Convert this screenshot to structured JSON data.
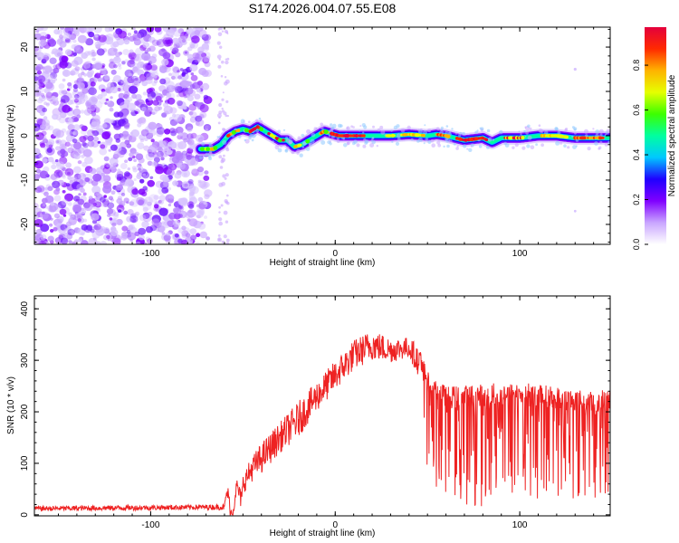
{
  "figure": {
    "title": "S174.2026.004.07.55.E08",
    "colors": {
      "line": "#ee2222",
      "frame": "#000000"
    }
  },
  "chart_data": [
    {
      "type": "heatmap",
      "name": "spectrogram",
      "xlabel": "Height of straight line (km)",
      "ylabel": "Frequency (Hz)",
      "xlim": [
        -163,
        149
      ],
      "ylim": [
        -24.5,
        24.5
      ],
      "xticks": [
        -100,
        0,
        100
      ],
      "xticklabels": [
        "-100",
        "0",
        "100"
      ],
      "yticks": [
        -20,
        -10,
        0,
        10,
        20
      ],
      "yticklabels": [
        "-20",
        "-10",
        "0",
        "10",
        "20"
      ],
      "noise_region_x": [
        -163,
        -58
      ],
      "ridge": {
        "x": [
          -73,
          -66,
          -62,
          -58,
          -54,
          -50,
          -46,
          -42,
          -38,
          -34,
          -30,
          -26,
          -22,
          -18,
          -14,
          -10,
          -6,
          -2,
          2,
          10,
          20,
          30,
          40,
          50,
          55,
          60,
          65,
          70,
          80,
          85,
          90,
          100,
          110,
          120,
          130,
          149
        ],
        "freq": [
          -3,
          -3,
          -2,
          0,
          1,
          1.5,
          1,
          2,
          1,
          0,
          -1,
          -1,
          -2.5,
          -2,
          -1,
          0,
          1,
          0.5,
          0,
          0,
          0,
          0,
          0.3,
          0,
          0.3,
          0,
          -0.5,
          -1,
          -0.5,
          -1.5,
          -0.5,
          -0.5,
          0,
          0,
          -0.5,
          -0.5
        ]
      }
    },
    {
      "type": "colorbar",
      "name": "amplitude-colorbar",
      "label": "Normalized spectral amplitude",
      "range": [
        0,
        0.97
      ],
      "ticks": [
        0.0,
        0.2,
        0.4,
        0.6,
        0.8
      ],
      "ticklabels": [
        "0.0",
        "0.2",
        "0.4",
        "0.6",
        "0.8"
      ],
      "colors": [
        "#ffffff",
        "#c9a5ff",
        "#8000ff",
        "#1f00ff",
        "#00c8ff",
        "#00ffa0",
        "#3cff00",
        "#e6ff00",
        "#ffb300",
        "#ff2a00",
        "#e4003c"
      ]
    },
    {
      "type": "line",
      "name": "snr",
      "xlabel": "Height of straight line (km)",
      "ylabel": "SNR (10 * v/v)",
      "xlim": [
        -163,
        149
      ],
      "ylim": [
        -2,
        425
      ],
      "xticks": [
        -100,
        0,
        100
      ],
      "xticklabels": [
        "-100",
        "0",
        "100"
      ],
      "yticks": [
        0,
        100,
        200,
        300,
        400
      ],
      "yticklabels": [
        "0",
        "100",
        "200",
        "300",
        "400"
      ],
      "envelope": {
        "x": [
          -163,
          -70,
          -60,
          -58,
          -55,
          -50,
          -45,
          -40,
          -30,
          -20,
          -10,
          0,
          10,
          20,
          30,
          40,
          45,
          50,
          60,
          80,
          100,
          120,
          140,
          149
        ],
        "base": [
          12,
          15,
          15,
          25,
          20,
          60,
          90,
          110,
          150,
          185,
          230,
          270,
          310,
          330,
          320,
          325,
          300,
          210,
          170,
          170,
          180,
          170,
          165,
          170
        ],
        "spread": [
          10,
          10,
          12,
          30,
          30,
          40,
          50,
          60,
          60,
          70,
          60,
          60,
          60,
          60,
          50,
          40,
          60,
          140,
          160,
          170,
          160,
          160,
          150,
          150
        ]
      }
    }
  ]
}
